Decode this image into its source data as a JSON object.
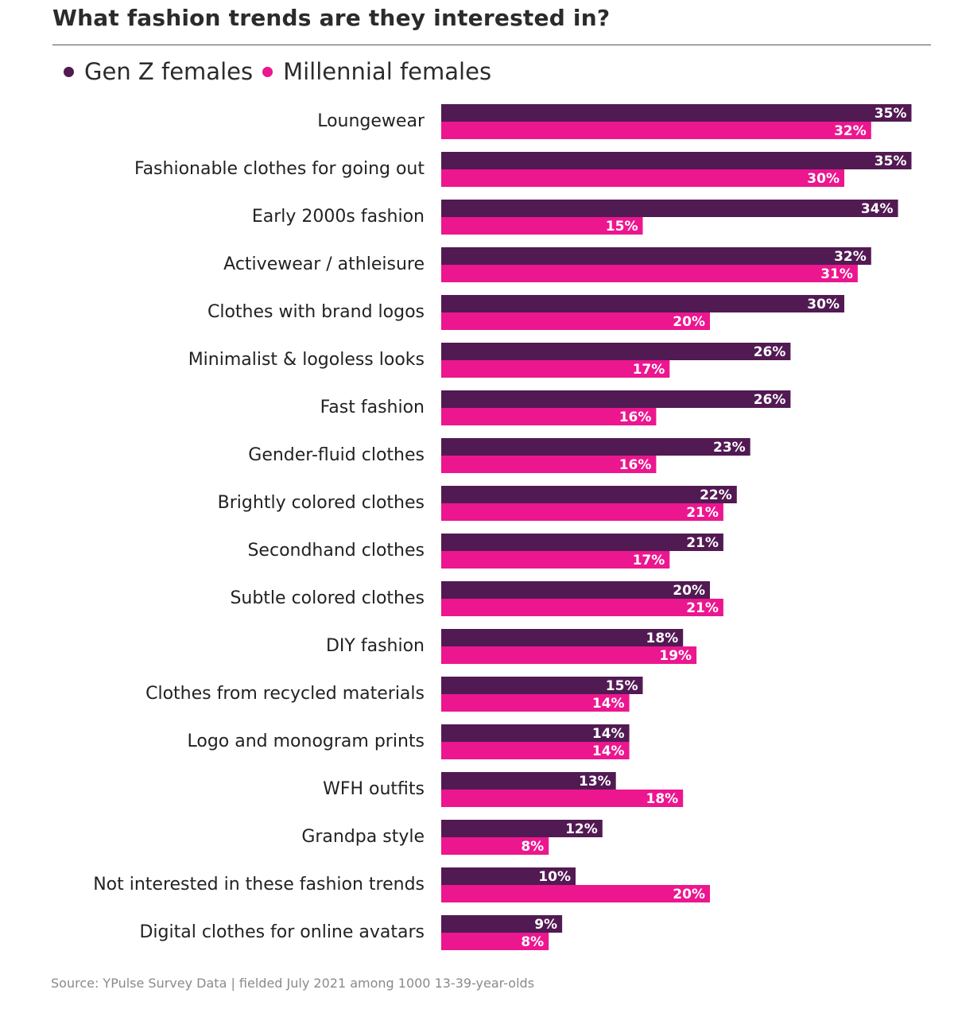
{
  "title": "What fashion trends are they interested in?",
  "source": "Source: YPulse Survey Data | fielded July 2021 among 1000 13-39-year-olds",
  "colors": {
    "genz": "#521a53",
    "millennial": "#ec168f"
  },
  "chart_data": {
    "type": "bar",
    "orientation": "horizontal",
    "legend_position": "top-left",
    "grid": false,
    "xlim": [
      0,
      35
    ],
    "categories": [
      "Loungewear",
      "Fashionable clothes for going out",
      "Early 2000s fashion",
      "Activewear / athleisure",
      "Clothes with brand logos",
      "Minimalist & logoless looks",
      "Fast fashion",
      "Gender-fluid clothes",
      "Brightly colored clothes",
      "Secondhand clothes",
      "Subtle colored clothes",
      "DIY fashion",
      "Clothes from recycled materials",
      "Logo and monogram prints",
      "WFH outfits",
      "Grandpa style",
      "Not interested in these fashion trends",
      "Digital clothes for online avatars"
    ],
    "series": [
      {
        "name": "Gen Z females",
        "color": "#521a53",
        "values": [
          35,
          35,
          34,
          32,
          30,
          26,
          26,
          23,
          22,
          21,
          20,
          18,
          15,
          14,
          13,
          12,
          10,
          9
        ]
      },
      {
        "name": "Millennial females",
        "color": "#ec168f",
        "values": [
          32,
          30,
          15,
          31,
          20,
          17,
          16,
          16,
          21,
          17,
          21,
          19,
          14,
          14,
          18,
          8,
          20,
          8
        ]
      }
    ],
    "value_suffix": "%"
  }
}
